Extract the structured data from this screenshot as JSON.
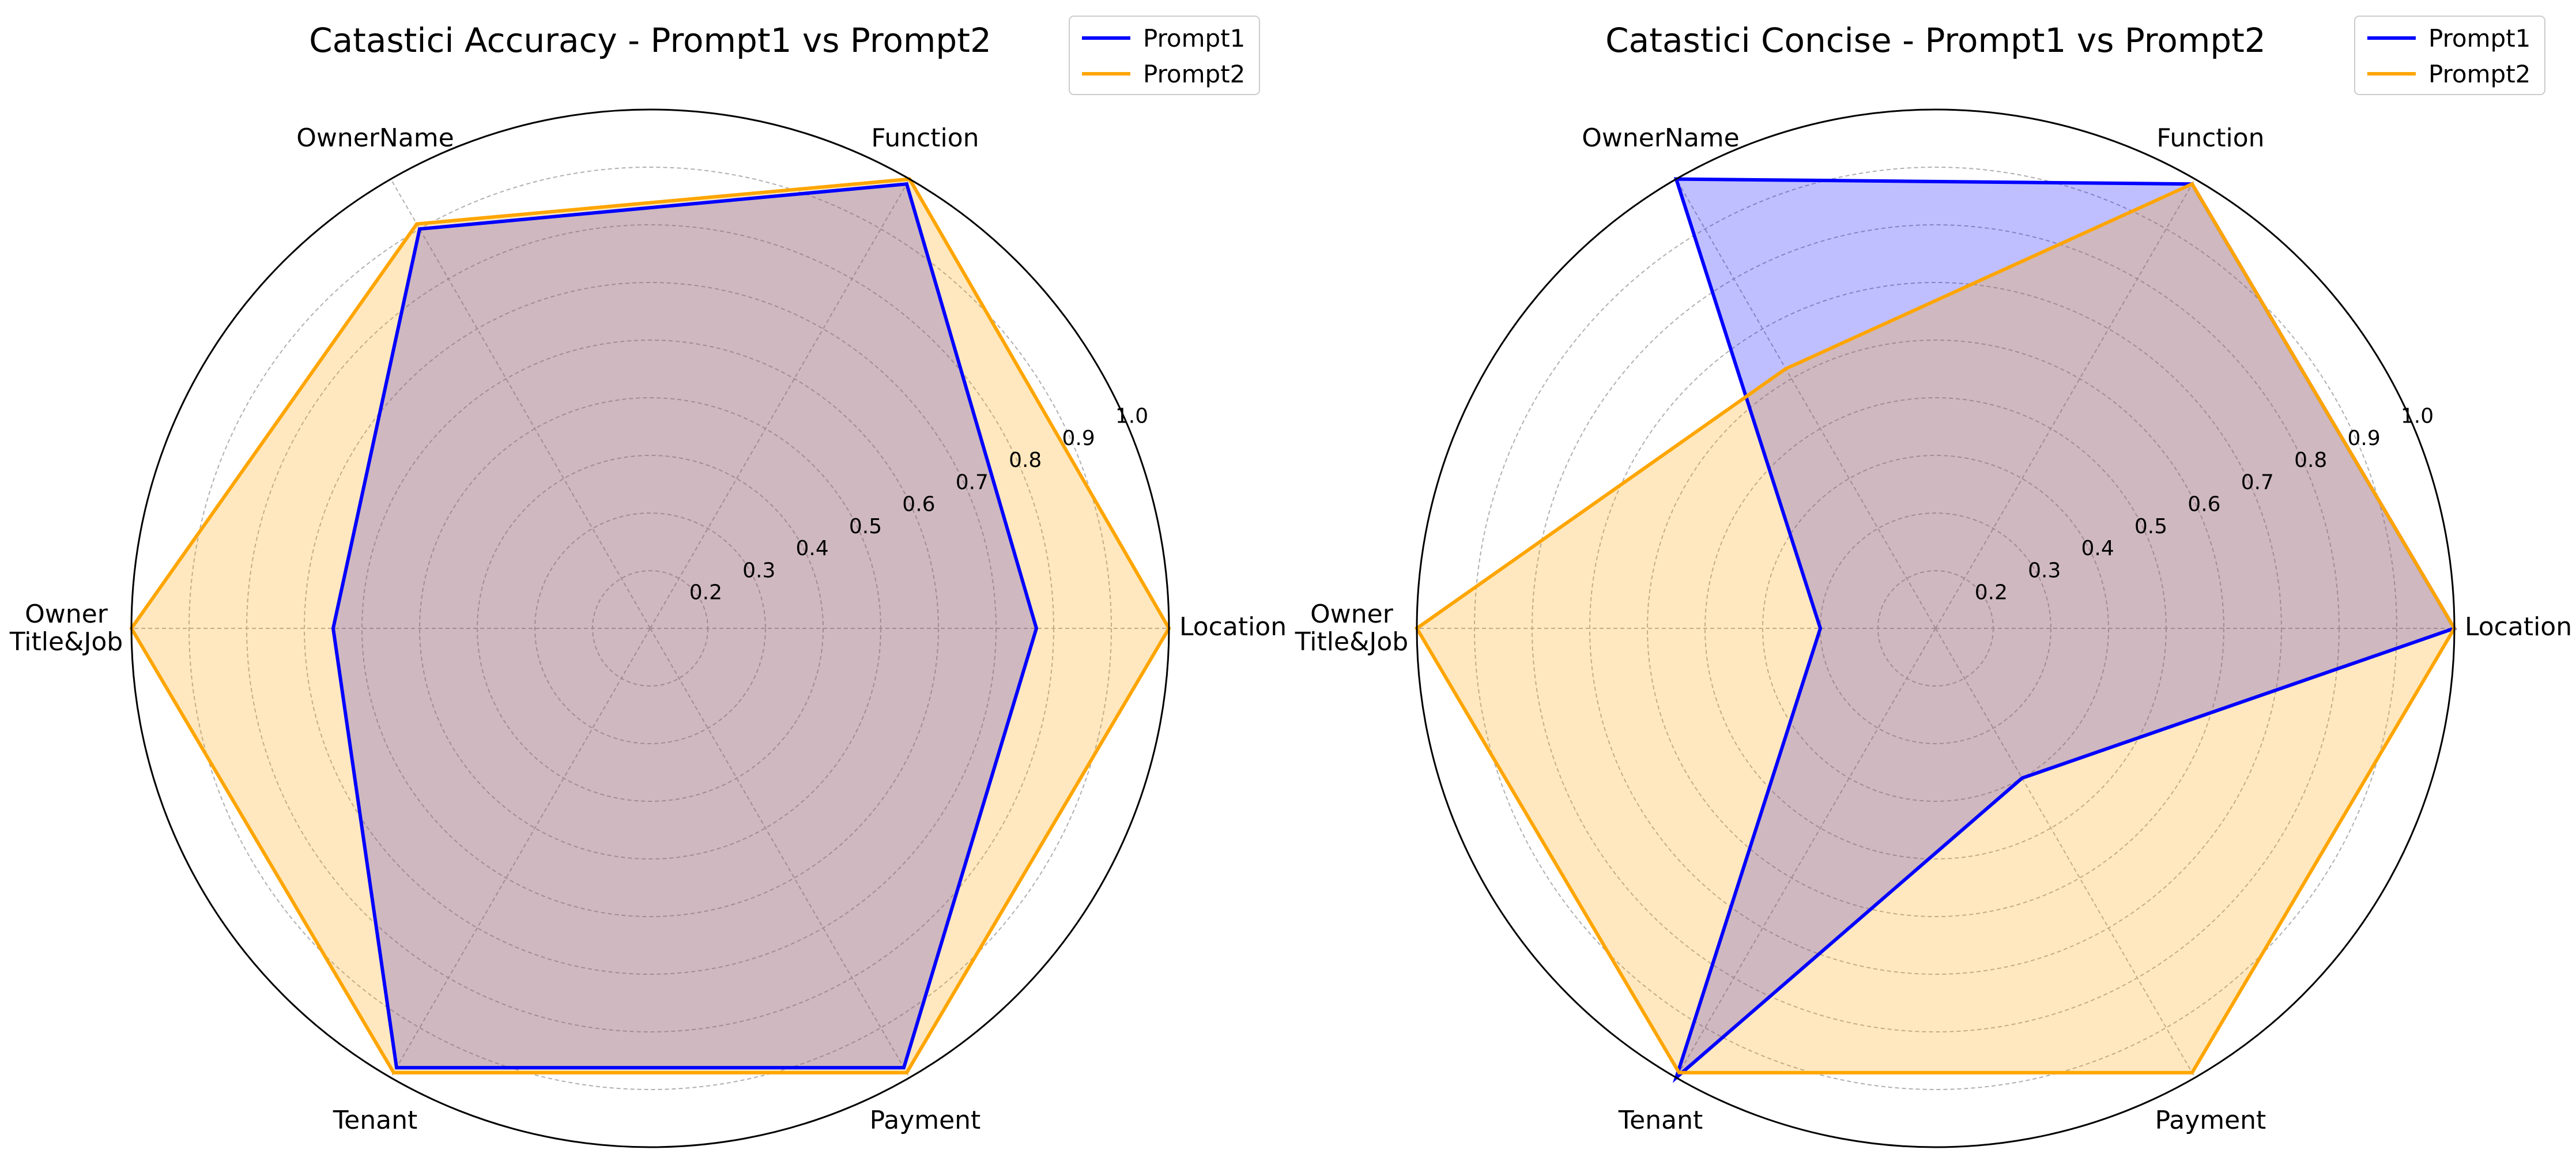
{
  "chart_data": [
    {
      "type": "radar",
      "title": "Catastici Accuracy - Prompt1 vs Prompt2",
      "categories": [
        "Location",
        "Function",
        "OwnerName",
        "Owner\nTitle&Job",
        "Tenant",
        "Payment"
      ],
      "rticks": [
        "0.2",
        "0.3",
        "0.4",
        "0.5",
        "0.6",
        "0.7",
        "0.8",
        "0.9",
        "1.0"
      ],
      "rlim": [
        0.1,
        1.0
      ],
      "grid": true,
      "legend_position": "top-right",
      "series": [
        {
          "name": "Prompt1",
          "color": "#0000ff",
          "fill": "#0000ff",
          "values": [
            0.77,
            0.99,
            0.9,
            0.65,
            0.98,
            0.98
          ]
        },
        {
          "name": "Prompt2",
          "color": "#ffa500",
          "fill": "#ffa500",
          "values": [
            1.0,
            1.0,
            0.91,
            1.0,
            0.99,
            0.99
          ]
        }
      ]
    },
    {
      "type": "radar",
      "title": "Catastici Concise - Prompt1 vs Prompt2",
      "categories": [
        "Location",
        "Function",
        "OwnerName",
        "Owner\nTitle&Job",
        "Tenant",
        "Payment"
      ],
      "rticks": [
        "0.2",
        "0.3",
        "0.4",
        "0.5",
        "0.6",
        "0.7",
        "0.8",
        "0.9",
        "1.0"
      ],
      "rlim": [
        0.1,
        1.0
      ],
      "grid": true,
      "legend_position": "top-right",
      "series": [
        {
          "name": "Prompt1",
          "color": "#0000ff",
          "fill": "#0000ff",
          "values": [
            1.0,
            0.99,
            1.0,
            0.3,
            1.0,
            0.4
          ]
        },
        {
          "name": "Prompt2",
          "color": "#ffa500",
          "fill": "#ffa500",
          "values": [
            1.0,
            0.99,
            0.62,
            1.0,
            0.99,
            0.99
          ]
        }
      ]
    }
  ]
}
